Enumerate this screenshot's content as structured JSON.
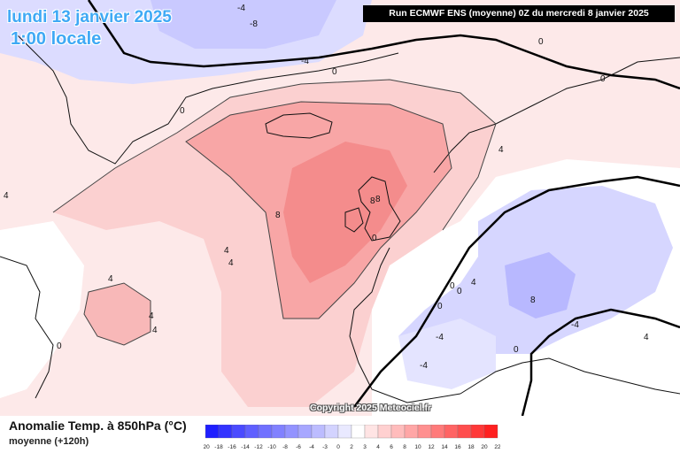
{
  "header": {
    "date_label": "lundi 13 janvier 2025",
    "time_label": "1:00 locale",
    "run_label": "Run ECMWF ENS (moyenne) 0Z du mercredi 8 janvier 2025"
  },
  "copyright": "Copyright 2025 Meteociel.fr",
  "legend": {
    "title": "Anomalie Temp. à 850hPa (°C)",
    "subtitle": "moyenne  (+120h)",
    "ticks": [
      "-20",
      "-18",
      "-16",
      "-14",
      "-12",
      "-10",
      "-8",
      "-6",
      "-4",
      "-3",
      "0",
      "2",
      "3",
      "4",
      "6",
      "8",
      "10",
      "12",
      "14",
      "16",
      "18",
      "20",
      "22"
    ],
    "colors": [
      "#1f1fff",
      "#3333ff",
      "#4a4aff",
      "#5f5fff",
      "#7070ff",
      "#8181ff",
      "#9393ff",
      "#a7a7ff",
      "#bcbcff",
      "#d3d3ff",
      "#e9e9ff",
      "#ffffff",
      "#ffe4e4",
      "#ffd0d0",
      "#ffbcbc",
      "#ffa6a6",
      "#ff9090",
      "#ff7a7a",
      "#ff6464",
      "#ff4e4e",
      "#ff3838",
      "#ff2020"
    ]
  },
  "contour_labels": [
    "-4",
    "-8",
    "0",
    "-4",
    "0",
    "0",
    "0",
    "0",
    "4",
    "4",
    "8",
    "8",
    "8",
    "4",
    "4",
    "4",
    "4",
    "4",
    "0",
    "0",
    "0",
    "0",
    "8",
    "-4",
    "-4",
    "4",
    "0",
    "-4",
    "4"
  ]
}
